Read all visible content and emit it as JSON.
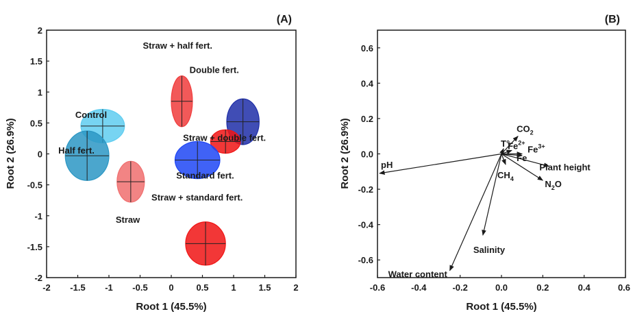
{
  "chart_data": [
    {
      "type": "scatter",
      "panel_label": "(A)",
      "xlabel": "Root 1 (45.5%)",
      "ylabel": "Root 2 (26.9%)",
      "xlim": [
        -2,
        2
      ],
      "ylim": [
        -2,
        2
      ],
      "xticks": [
        -2,
        -1.5,
        -1,
        -0.5,
        0,
        0.5,
        1,
        1.5,
        2
      ],
      "xtick_labels": [
        "-2",
        "-1.5",
        "-1",
        "-0.5",
        "0",
        "0.5",
        "1",
        "1.5",
        "2"
      ],
      "yticks": [
        -2,
        -1.5,
        -1,
        -0.5,
        0,
        0.5,
        1,
        1.5,
        2
      ],
      "ytick_labels": [
        "-2",
        "-1.5",
        "-1",
        "-0.5",
        "0",
        "0.5",
        "1",
        "1.5",
        "2"
      ],
      "groups": [
        {
          "label": "Control",
          "x": -1.1,
          "y": 0.45,
          "sx": 0.35,
          "sy": 0.27,
          "color": "#5fcdf0"
        },
        {
          "label": "Half fert.",
          "x": -1.35,
          "y": -0.03,
          "sx": 0.35,
          "sy": 0.4,
          "color": "#2b97c4"
        },
        {
          "label": "Straw",
          "x": -0.65,
          "y": -0.45,
          "sx": 0.22,
          "sy": 0.33,
          "color": "#f06e6e"
        },
        {
          "label": "Straw + half fert.",
          "x": 0.17,
          "y": 0.85,
          "sx": 0.17,
          "sy": 0.41,
          "color": "#f03c3c"
        },
        {
          "label": "Double fert.",
          "x": 1.15,
          "y": 0.52,
          "sx": 0.26,
          "sy": 0.37,
          "color": "#1e2ea8"
        },
        {
          "label": "Straw + double fert.",
          "x": 0.87,
          "y": 0.2,
          "sx": 0.24,
          "sy": 0.19,
          "color": "#f01414"
        },
        {
          "label": "Standard fert.",
          "x": 0.42,
          "y": -0.1,
          "sx": 0.36,
          "sy": 0.3,
          "color": "#1e46f5"
        },
        {
          "label": "Straw + standard fert.",
          "x": 0.55,
          "y": -1.45,
          "sx": 0.32,
          "sy": 0.35,
          "color": "#f01414"
        }
      ]
    },
    {
      "type": "scatter",
      "panel_label": "(B)",
      "xlabel": "Root 1 (45.5%)",
      "ylabel": "Root 2 (26.9%)",
      "xlim": [
        -0.6,
        0.6
      ],
      "ylim": [
        -0.7,
        0.7
      ],
      "xticks": [
        -0.6,
        -0.4,
        -0.2,
        0,
        0.2,
        0.4,
        0.6
      ],
      "xtick_labels": [
        "-0.6",
        "-0.4",
        "-0.2",
        "0.0",
        "0.2",
        "0.4",
        "0.6"
      ],
      "yticks": [
        -0.6,
        -0.4,
        -0.2,
        0,
        0.2,
        0.4,
        0.6
      ],
      "ytick_labels": [
        "-0.6",
        "-0.4",
        "-0.2",
        "0.0",
        "0.2",
        "0.4",
        "0.6"
      ],
      "vectors": [
        {
          "label": "pH",
          "x": -0.59,
          "y": -0.11
        },
        {
          "label": "CO",
          "sub": "2",
          "x": 0.08,
          "y": 0.1
        },
        {
          "label": "T°",
          "x": 0.01,
          "y": 0.03
        },
        {
          "label": "Fe",
          "sup": "2+",
          "x": 0.05,
          "y": 0.02
        },
        {
          "label": "Fe",
          "sup": "3+",
          "x": 0.1,
          "y": 0.0
        },
        {
          "label": "Fe",
          "x": 0.1,
          "y": -0.01
        },
        {
          "label": "Plant height",
          "x": 0.23,
          "y": -0.07
        },
        {
          "label": "CH",
          "sub": "4",
          "x": 0.02,
          "y": -0.06
        },
        {
          "label": "N",
          "sub": "2",
          "suffix": "O",
          "x": 0.2,
          "y": -0.15
        },
        {
          "label": "Salinity",
          "x": -0.09,
          "y": -0.46
        },
        {
          "label": "Water content",
          "x": -0.25,
          "y": -0.66
        }
      ]
    }
  ]
}
